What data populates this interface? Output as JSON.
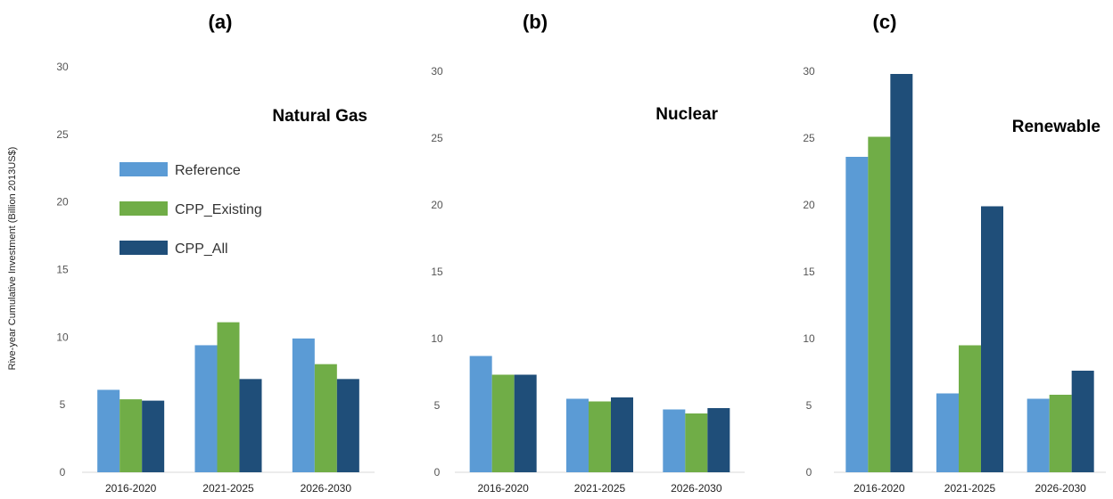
{
  "ylabel": "Rive-year Cumulative Investment  (Billion 2013US$)",
  "colors": {
    "Reference": "#5b9bd5",
    "CPP_Existing": "#70ad47",
    "CPP_All": "#1f4e79",
    "axis": "#d9d9d9",
    "tick": "#555555"
  },
  "chart_data": [
    {
      "type": "bar",
      "panel_label": "(a)",
      "title": "Natural Gas",
      "categories": [
        "2016-2020",
        "2021-2025",
        "2026-2030"
      ],
      "series": [
        {
          "name": "Reference",
          "values": [
            6.1,
            9.4,
            9.9
          ]
        },
        {
          "name": "CPP_Existing",
          "values": [
            5.4,
            11.1,
            8.0
          ]
        },
        {
          "name": "CPP_All",
          "values": [
            5.3,
            6.9,
            6.9
          ]
        }
      ],
      "ylim": [
        0,
        30
      ],
      "yticks": [
        0,
        5,
        10,
        15,
        20,
        25,
        30
      ],
      "legend": "upper-left",
      "grid": false
    },
    {
      "type": "bar",
      "panel_label": "(b)",
      "title": "Nuclear",
      "categories": [
        "2016-2020",
        "2021-2025",
        "2026-2030"
      ],
      "series": [
        {
          "name": "Reference",
          "values": [
            8.7,
            5.5,
            4.7
          ]
        },
        {
          "name": "CPP_Existing",
          "values": [
            7.3,
            5.3,
            4.4
          ]
        },
        {
          "name": "CPP_All",
          "values": [
            7.3,
            5.6,
            4.8
          ]
        }
      ],
      "ylim": [
        0,
        30
      ],
      "yticks": [
        0,
        5,
        10,
        15,
        20,
        25,
        30
      ],
      "grid": false
    },
    {
      "type": "bar",
      "panel_label": "(c)",
      "title": "Renewable",
      "categories": [
        "2016-2020",
        "2021-2025",
        "2026-2030"
      ],
      "series": [
        {
          "name": "Reference",
          "values": [
            23.6,
            5.9,
            5.5
          ]
        },
        {
          "name": "CPP_Existing",
          "values": [
            25.1,
            9.5,
            5.8
          ]
        },
        {
          "name": "CPP_All",
          "values": [
            29.8,
            19.9,
            7.6
          ]
        }
      ],
      "ylim": [
        0,
        30
      ],
      "yticks": [
        0,
        5,
        10,
        15,
        20,
        25,
        30
      ],
      "grid": false
    }
  ]
}
